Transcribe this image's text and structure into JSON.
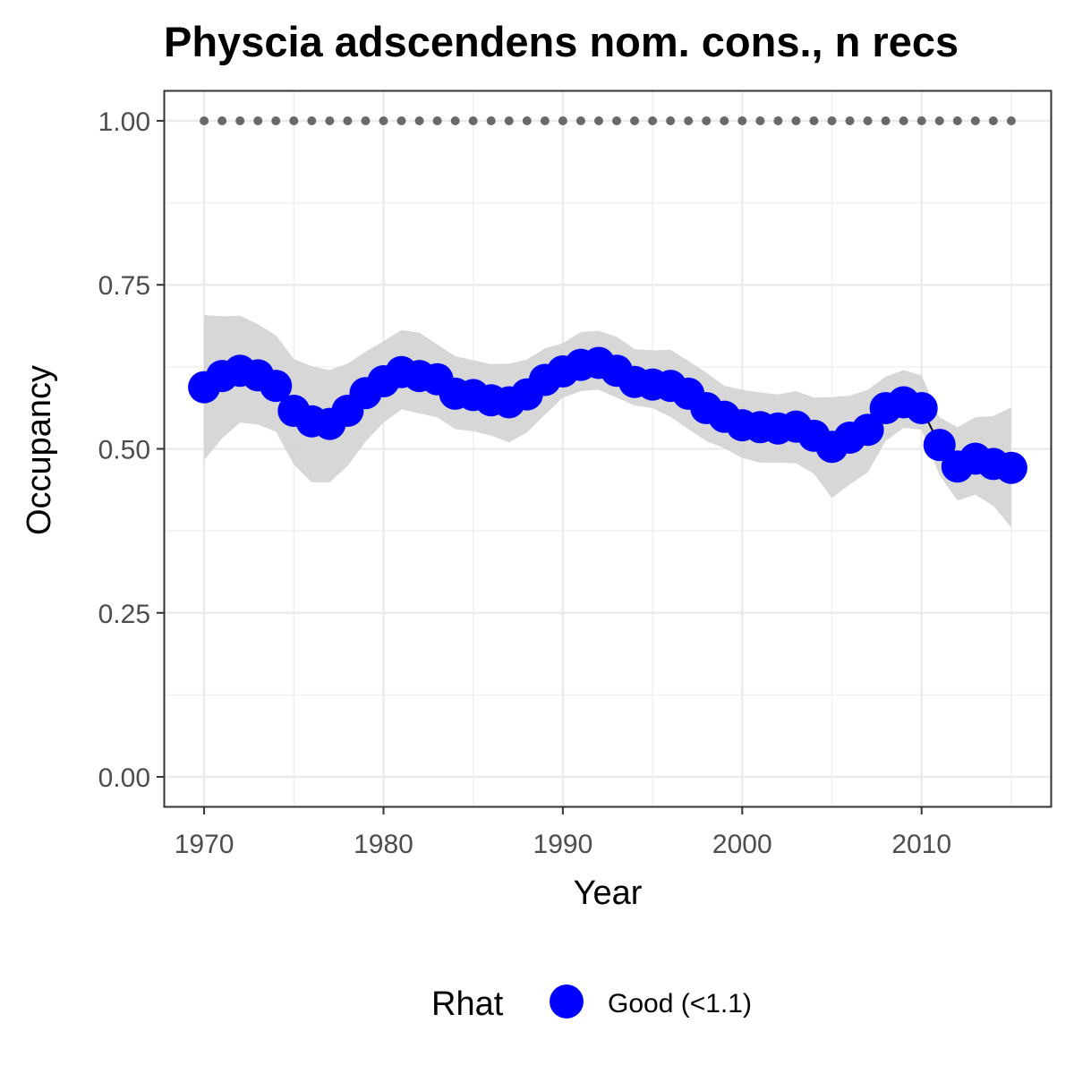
{
  "chart_data": {
    "type": "line",
    "title": "Physcia adscendens nom. cons., n recs",
    "xlabel": "Year",
    "ylabel": "Occupancy",
    "xlim": [
      1967.8,
      2017.2
    ],
    "ylim": [
      -0.045,
      1.045
    ],
    "x_ticks": [
      1970,
      1980,
      1990,
      2000,
      2010
    ],
    "x_tick_labels": [
      "1970",
      "1980",
      "1990",
      "2000",
      "2010"
    ],
    "y_ticks": [
      0,
      0.25,
      0.5,
      0.75,
      1.0
    ],
    "y_tick_labels": [
      "0.00",
      "0.25",
      "0.50",
      "0.75",
      "1.00"
    ],
    "grid": true,
    "legend": {
      "title": "Rhat",
      "position": "bottom",
      "entries": [
        {
          "label": "Good (<1.1)",
          "color": "#0000ff"
        }
      ]
    },
    "series": [
      {
        "role": "mean",
        "color": "#0000ff",
        "x": [
          1970,
          1971,
          1972,
          1973,
          1974,
          1975,
          1976,
          1977,
          1978,
          1979,
          1980,
          1981,
          1982,
          1983,
          1984,
          1985,
          1986,
          1987,
          1988,
          1989,
          1990,
          1991,
          1992,
          1993,
          1994,
          1995,
          1996,
          1997,
          1998,
          1999,
          2000,
          2001,
          2002,
          2003,
          2004,
          2005,
          2006,
          2007,
          2008,
          2009,
          2010,
          2011,
          2012,
          2013,
          2014,
          2015
        ],
        "values": [
          0.594,
          0.611,
          0.619,
          0.612,
          0.596,
          0.558,
          0.542,
          0.538,
          0.558,
          0.585,
          0.603,
          0.617,
          0.611,
          0.606,
          0.584,
          0.582,
          0.574,
          0.571,
          0.583,
          0.605,
          0.618,
          0.628,
          0.631,
          0.619,
          0.602,
          0.598,
          0.596,
          0.584,
          0.562,
          0.549,
          0.536,
          0.533,
          0.531,
          0.534,
          0.52,
          0.503,
          0.517,
          0.529,
          0.562,
          0.571,
          0.562,
          0.506,
          0.473,
          0.485,
          0.477,
          0.471
        ]
      },
      {
        "role": "credible-interval",
        "color": "#d3d3d3",
        "lower": [
          0.483,
          0.516,
          0.54,
          0.537,
          0.526,
          0.476,
          0.449,
          0.449,
          0.474,
          0.511,
          0.54,
          0.56,
          0.554,
          0.548,
          0.53,
          0.527,
          0.52,
          0.51,
          0.525,
          0.552,
          0.578,
          0.588,
          0.59,
          0.578,
          0.566,
          0.562,
          0.549,
          0.53,
          0.512,
          0.501,
          0.486,
          0.479,
          0.479,
          0.478,
          0.462,
          0.425,
          0.446,
          0.464,
          0.512,
          0.532,
          0.529,
          0.46,
          0.421,
          0.43,
          0.413,
          0.38
        ],
        "upper": [
          0.704,
          0.702,
          0.703,
          0.69,
          0.673,
          0.637,
          0.626,
          0.62,
          0.63,
          0.648,
          0.664,
          0.681,
          0.677,
          0.659,
          0.641,
          0.635,
          0.629,
          0.63,
          0.636,
          0.653,
          0.661,
          0.678,
          0.68,
          0.671,
          0.652,
          0.65,
          0.651,
          0.634,
          0.616,
          0.596,
          0.59,
          0.586,
          0.583,
          0.588,
          0.578,
          0.579,
          0.581,
          0.59,
          0.61,
          0.62,
          0.612,
          0.548,
          0.533,
          0.548,
          0.55,
          0.563
        ]
      },
      {
        "role": "naive-occupancy",
        "color": "#696969",
        "x": [
          1970,
          1971,
          1972,
          1973,
          1974,
          1975,
          1976,
          1977,
          1978,
          1979,
          1980,
          1981,
          1982,
          1983,
          1984,
          1985,
          1986,
          1987,
          1988,
          1989,
          1990,
          1991,
          1992,
          1993,
          1994,
          1995,
          1996,
          1997,
          1998,
          1999,
          2000,
          2001,
          2002,
          2003,
          2004,
          2005,
          2006,
          2007,
          2008,
          2009,
          2010,
          2011,
          2012,
          2013,
          2014,
          2015
        ],
        "values": [
          1,
          1,
          1,
          1,
          1,
          1,
          1,
          1,
          1,
          1,
          1,
          1,
          1,
          1,
          1,
          1,
          1,
          1,
          1,
          1,
          1,
          1,
          1,
          1,
          1,
          1,
          1,
          1,
          1,
          1,
          1,
          1,
          1,
          1,
          1,
          1,
          1,
          1,
          1,
          1,
          1,
          1,
          1,
          1,
          1,
          1
        ]
      }
    ]
  }
}
